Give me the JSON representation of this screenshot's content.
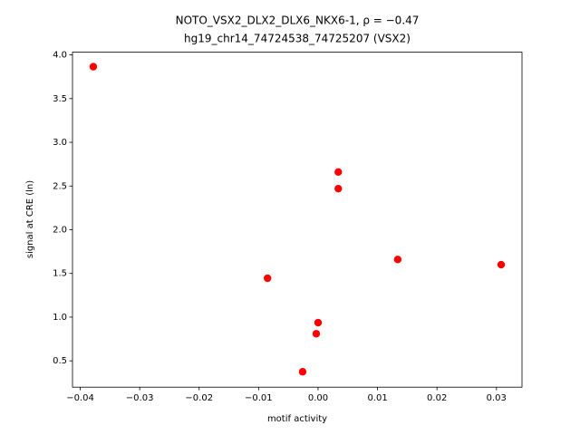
{
  "chart_data": {
    "type": "scatter",
    "title": "NOTO_VSX2_DLX2_DLX6_NKX6-1, ρ = −0.47",
    "subtitle": "hg19_chr14_74724538_74725207 (VSX2)",
    "x_label": "motif activity",
    "y_label": "signal at CRE (ln)",
    "color": "#ff0000",
    "x": [
      -0.0378,
      0.0034,
      0.0034,
      -0.0085,
      0.0134,
      0.0308,
      0.0,
      -0.0003,
      -0.0026
    ],
    "values": [
      3.865,
      2.66,
      2.47,
      1.445,
      1.66,
      1.6,
      0.937,
      0.81,
      0.375
    ],
    "xlim": [
      -0.0413,
      0.0343
    ],
    "ylim": [
      0.199,
      4.031
    ],
    "xticks": [
      {
        "value": -0.04,
        "label": "−0.04"
      },
      {
        "value": -0.03,
        "label": "−0.03"
      },
      {
        "value": -0.02,
        "label": "−0.02"
      },
      {
        "value": -0.01,
        "label": "−0.01"
      },
      {
        "value": 0,
        "label": "0.00"
      },
      0.01,
      0.02,
      0.03
    ],
    "yticks": [
      0.5,
      {
        "value": 1,
        "label": "1.0"
      },
      1.5,
      {
        "value": 2,
        "label": "2.0"
      },
      2.5,
      {
        "value": 3,
        "label": "3.0"
      },
      3.5,
      {
        "value": 4,
        "label": "4.0"
      }
    ]
  }
}
